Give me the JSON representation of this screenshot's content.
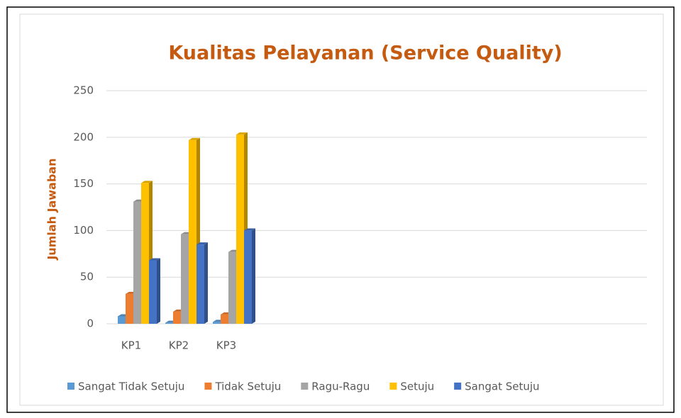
{
  "chart_data": {
    "type": "bar3d",
    "title": "Kualitas Pelayanan (Service Quality)",
    "y_axis_label": "Jumlah Jawaban",
    "categories": [
      "KP1",
      "KP2",
      "KP3"
    ],
    "series": [
      {
        "name": "Sangat Tidak Setuju",
        "color": "#5b9bd5",
        "values": [
          8,
          1,
          2
        ]
      },
      {
        "name": "Tidak Setuju",
        "color": "#ed7d31",
        "values": [
          32,
          13,
          10
        ]
      },
      {
        "name": "Ragu-Ragu",
        "color": "#a5a5a5",
        "values": [
          131,
          96,
          77
        ]
      },
      {
        "name": "Setuju",
        "color": "#ffc000",
        "values": [
          151,
          197,
          203
        ]
      },
      {
        "name": "Sangat Setuju",
        "color": "#4472c4",
        "values": [
          68,
          85,
          100
        ]
      }
    ],
    "ylim": [
      0,
      250
    ],
    "yticks": [
      0,
      50,
      100,
      150,
      200,
      250
    ],
    "grid": true,
    "legend": "bottom"
  }
}
